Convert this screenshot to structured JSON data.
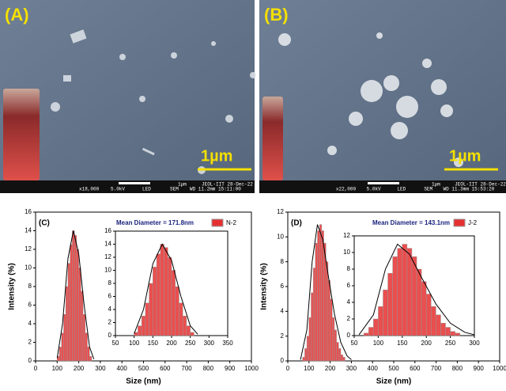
{
  "panels": [
    {
      "label": "(A)",
      "scale": "1µm",
      "info": [
        "x18,000",
        "5.0kV",
        "LED",
        "SEM",
        "WD 11.2mm 15:11:00",
        "1µm",
        "JEOL-IIT 28-Dec-22"
      ]
    },
    {
      "label": "(B)",
      "scale": "1µm",
      "info": [
        "x22,000",
        "5.0kV",
        "LED",
        "SEM",
        "WD 11.3mm 15:53:20",
        "1µm",
        "JEOL-IIT 28-Dec-22"
      ]
    }
  ],
  "chart_data": [
    {
      "type": "histogram",
      "panel_label": "(C)",
      "annotation": "Mean Diameter = 171.8nm",
      "legend": "N-2",
      "color": "#e53030",
      "xlabel": "Size (nm)",
      "ylabel": "Intensity (%)",
      "bins": [
        100,
        110,
        120,
        130,
        140,
        150,
        160,
        170,
        180,
        190,
        200,
        210,
        220,
        230,
        240,
        250,
        260
      ],
      "counts": [
        0.5,
        1.5,
        3,
        5,
        8,
        10.5,
        12.5,
        14,
        13.5,
        12,
        10,
        7.5,
        5,
        3,
        1.5,
        0.5
      ],
      "fit": {
        "x": [
          100,
          125,
          150,
          175,
          200,
          225,
          250,
          270
        ],
        "values": [
          0.3,
          4,
          11,
          14,
          11.5,
          6,
          1.5,
          0.2
        ]
      },
      "xlim": [
        0,
        1000
      ],
      "xticks": [
        0,
        100,
        200,
        300,
        400,
        500,
        600,
        700,
        800,
        900,
        1000
      ],
      "ylim": [
        0,
        16
      ],
      "yticks": [
        0,
        2,
        4,
        6,
        8,
        10,
        12,
        14,
        16
      ]
    },
    {
      "type": "histogram",
      "color": "#e53030",
      "bins": [
        100,
        110,
        120,
        130,
        140,
        150,
        160,
        170,
        180,
        190,
        200,
        210,
        220,
        230,
        240,
        250,
        260
      ],
      "counts": [
        0.5,
        1.5,
        3,
        5,
        8,
        10.5,
        12.5,
        14,
        13.5,
        12,
        10,
        7.5,
        5,
        3,
        1.5,
        0.5
      ],
      "fit": {
        "x": [
          100,
          125,
          150,
          175,
          200,
          225,
          250,
          270
        ],
        "values": [
          0.3,
          4,
          11,
          14,
          11.5,
          6,
          1.5,
          0.2
        ]
      },
      "xlim": [
        50,
        350
      ],
      "xticks": [
        50,
        100,
        150,
        200,
        250,
        300,
        350
      ],
      "ylim": [
        0,
        16
      ],
      "yticks": [
        0,
        2,
        4,
        6,
        8,
        10,
        12,
        14,
        16
      ]
    },
    {
      "type": "histogram",
      "panel_label": "(D)",
      "annotation": "Mean Diameter = 143.1nm",
      "legend": "J-2",
      "color": "#e53030",
      "xlabel": "Size (nm)",
      "ylabel": "Intensity (%)",
      "bins": [
        70,
        80,
        90,
        100,
        110,
        120,
        130,
        140,
        150,
        160,
        170,
        180,
        190,
        200,
        210,
        220,
        230,
        240,
        250,
        260,
        270
      ],
      "counts": [
        0.3,
        1,
        2,
        3.5,
        5.5,
        7.5,
        9.5,
        10.5,
        11,
        10.5,
        9.5,
        8,
        6.5,
        5,
        3.5,
        2.5,
        1.5,
        1,
        0.5,
        0.3
      ],
      "fit": {
        "x": [
          60,
          90,
          115,
          140,
          165,
          190,
          220,
          250,
          280,
          300
        ],
        "values": [
          0.1,
          2.5,
          8,
          11,
          9.8,
          7,
          3.8,
          1.5,
          0.4,
          0.1
        ]
      },
      "xlim": [
        0,
        1000
      ],
      "xticks": [
        0,
        100,
        200,
        300,
        400,
        500,
        600,
        700,
        800,
        900,
        1000
      ],
      "ylim": [
        0,
        12
      ],
      "yticks": [
        0,
        2,
        4,
        6,
        8,
        10,
        12
      ]
    },
    {
      "type": "histogram",
      "color": "#e53030",
      "bins": [
        70,
        80,
        90,
        100,
        110,
        120,
        130,
        140,
        150,
        160,
        170,
        180,
        190,
        200,
        210,
        220,
        230,
        240,
        250,
        260,
        270
      ],
      "counts": [
        0.3,
        1,
        2,
        3.5,
        5.5,
        7.5,
        9.5,
        10.5,
        11,
        10.5,
        9.5,
        8,
        6.5,
        5,
        3.5,
        2.5,
        1.5,
        1,
        0.5,
        0.3
      ],
      "fit": {
        "x": [
          60,
          90,
          115,
          140,
          165,
          190,
          220,
          250,
          280,
          300
        ],
        "values": [
          0.1,
          2.5,
          8,
          11,
          9.8,
          7,
          3.8,
          1.5,
          0.4,
          0.1
        ]
      },
      "xlim": [
        50,
        300
      ],
      "xticks": [
        50,
        100,
        150,
        200,
        250,
        300
      ],
      "ylim": [
        0,
        12
      ],
      "yticks": [
        0,
        2,
        4,
        6,
        8,
        10,
        12
      ]
    }
  ]
}
